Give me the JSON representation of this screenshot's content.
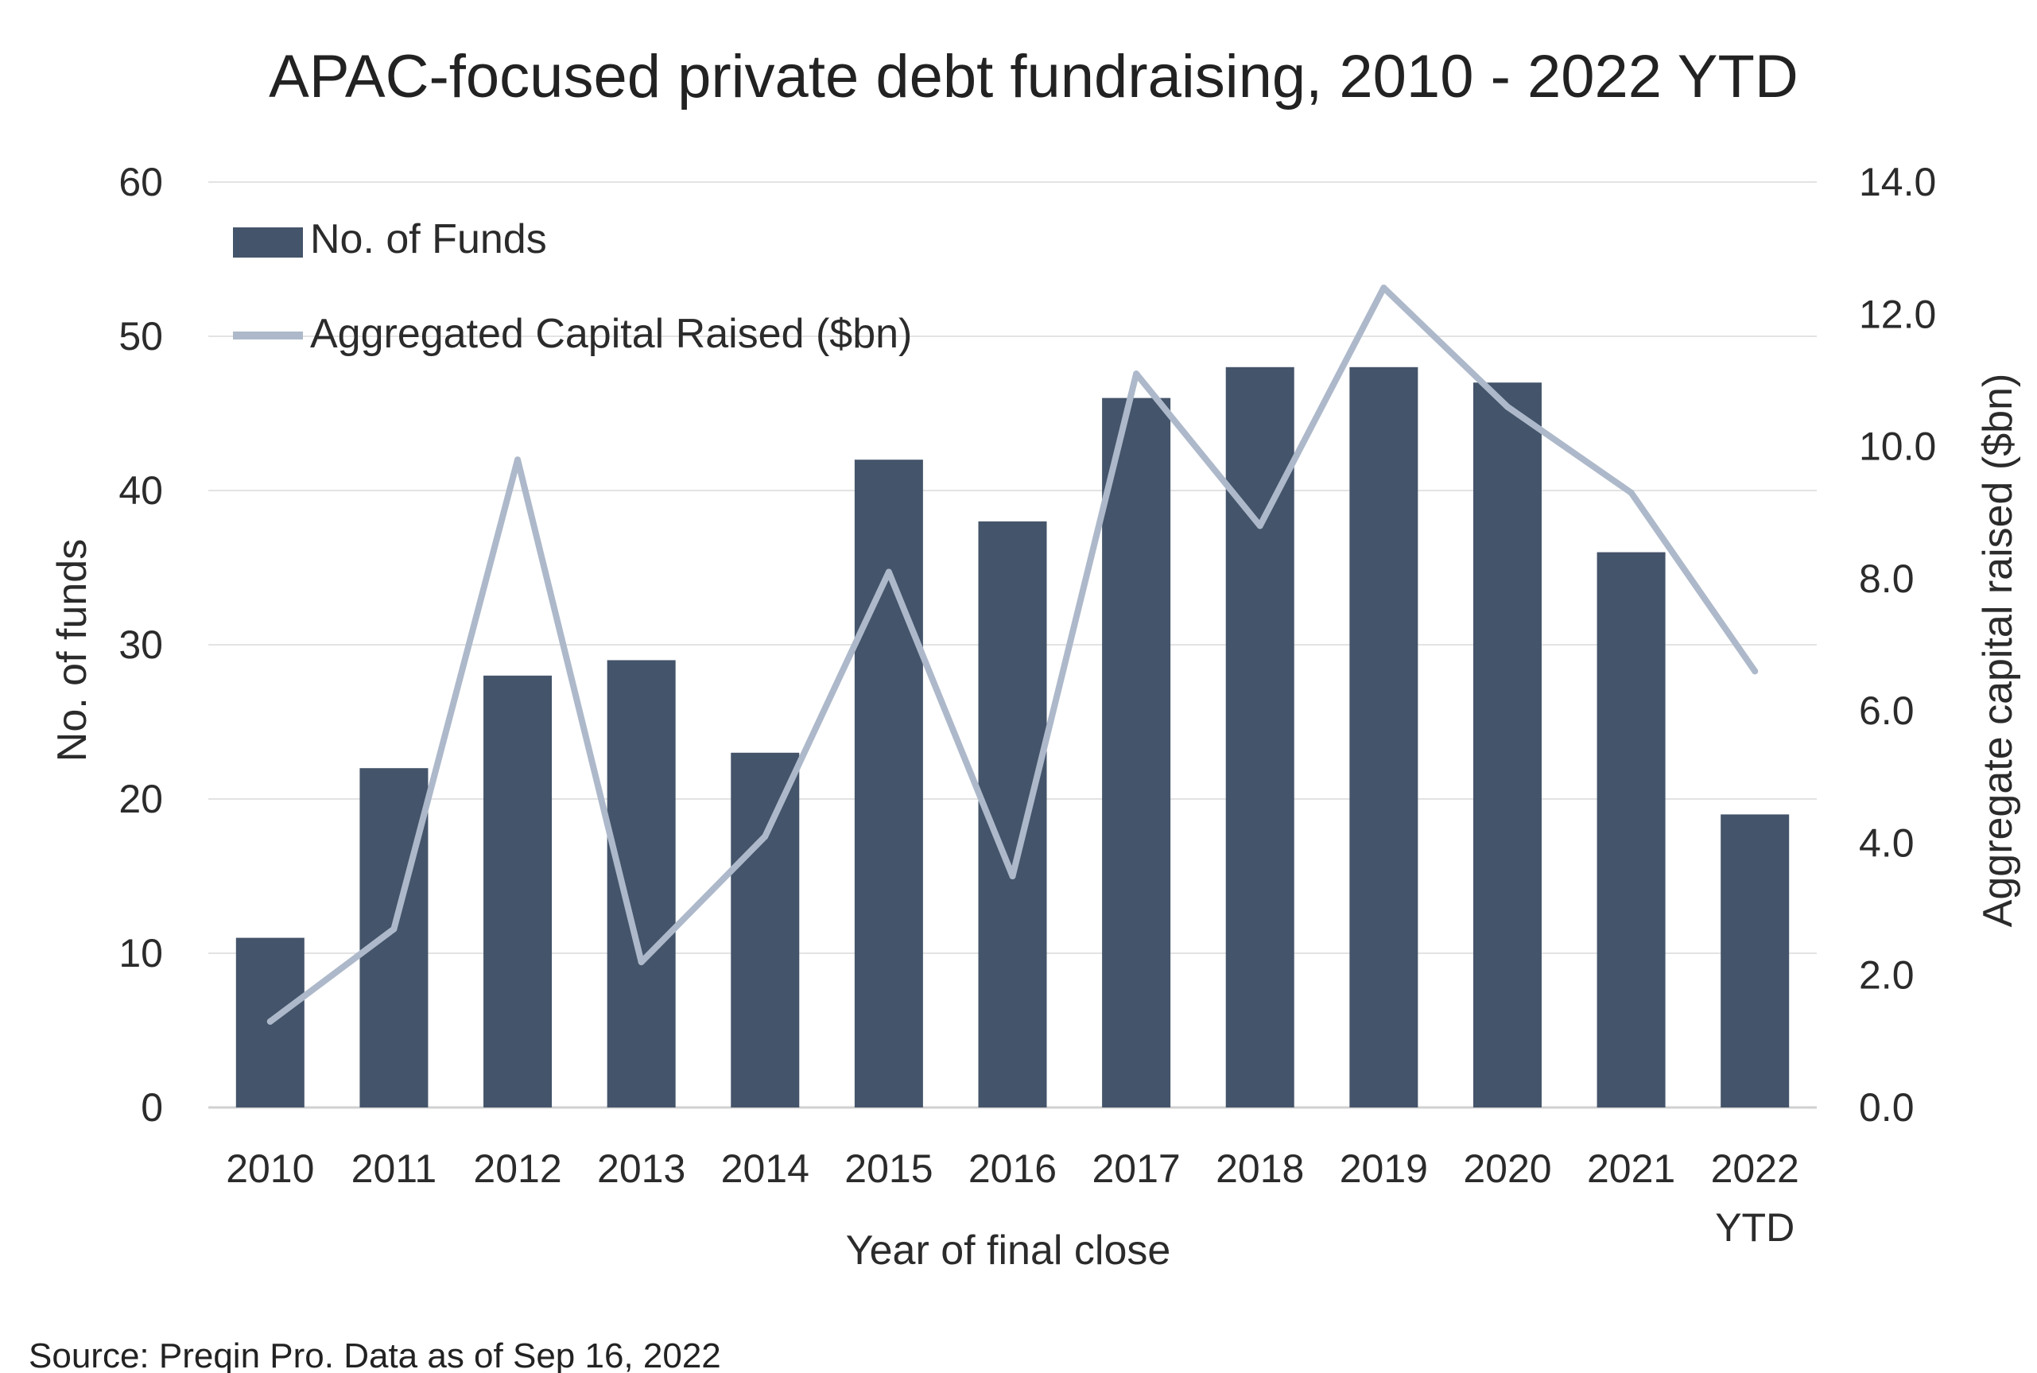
{
  "chart_data": {
    "type": "bar",
    "title": "APAC-focused private debt fundraising, 2010 - 2022 YTD",
    "xlabel": "Year of final close",
    "ylabel": "No. of funds",
    "y2label": "Aggregate capital raised ($bn)",
    "categories": [
      [
        "2010"
      ],
      [
        "2011"
      ],
      [
        "2012"
      ],
      [
        "2013"
      ],
      [
        "2014"
      ],
      [
        "2015"
      ],
      [
        "2016"
      ],
      [
        "2017"
      ],
      [
        "2018"
      ],
      [
        "2019"
      ],
      [
        "2020"
      ],
      [
        "2021"
      ],
      [
        "2022",
        "YTD"
      ]
    ],
    "ylim": [
      0,
      60
    ],
    "y2lim": [
      0,
      14
    ],
    "yticks": [
      "0",
      "10",
      "20",
      "30",
      "40",
      "50",
      "60"
    ],
    "y2ticks": [
      "0.0",
      "2.0",
      "4.0",
      "6.0",
      "8.0",
      "10.0",
      "12.0",
      "14.0"
    ],
    "grid": true,
    "legend_position": "top-left",
    "series": [
      {
        "name": "No. of Funds",
        "type": "bar",
        "axis": "left",
        "color": "#44546a",
        "values": [
          11,
          22,
          28,
          29,
          23,
          42,
          38,
          46,
          48,
          48,
          47,
          36,
          19
        ]
      },
      {
        "name": "Aggregated Capital Raised ($bn)",
        "type": "line",
        "axis": "right",
        "color": "#adb9ca",
        "values": [
          1.3,
          2.7,
          9.8,
          2.2,
          4.1,
          8.1,
          3.5,
          11.1,
          8.8,
          12.4,
          10.6,
          9.3,
          6.6
        ]
      }
    ]
  },
  "source": "Source: Preqin Pro. Data as of Sep 16, 2022"
}
